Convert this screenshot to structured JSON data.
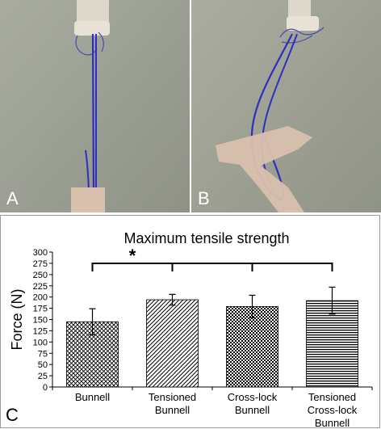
{
  "panels": {
    "a": {
      "label": "A"
    },
    "b": {
      "label": "B"
    },
    "c": {
      "label": "C"
    }
  },
  "chart_data": {
    "type": "bar",
    "title": "Maximum tensile strength",
    "xlabel": "",
    "ylabel": "Force (N)",
    "ylim": [
      0,
      300
    ],
    "yticks": [
      0,
      25,
      50,
      75,
      100,
      125,
      150,
      175,
      200,
      225,
      250,
      275,
      300
    ],
    "grid": false,
    "categories": [
      [
        "Bunnell"
      ],
      [
        "Tensioned",
        "Bunnell"
      ],
      [
        "Cross-lock",
        "Bunnell"
      ],
      [
        "Tensioned",
        "Cross-lock",
        "Bunnell"
      ]
    ],
    "values": [
      145,
      194,
      179,
      192
    ],
    "errors": [
      29,
      12,
      25,
      30
    ],
    "patterns": [
      "crosshatch",
      "diagonal",
      "checker",
      "horizontal"
    ],
    "significance": {
      "symbol": "*",
      "from": 0,
      "to": [
        1,
        2,
        3
      ]
    }
  }
}
